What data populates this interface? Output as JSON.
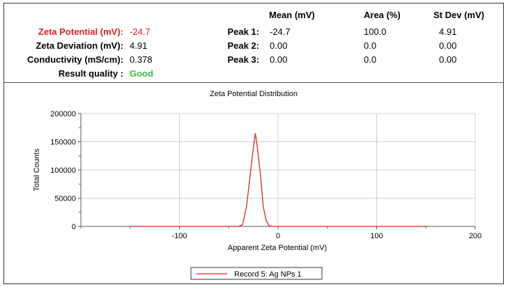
{
  "summary": {
    "headers": {
      "mean": "Mean (mV)",
      "area": "Area (%)",
      "stdev": "St Dev (mV)"
    },
    "left_rows": [
      {
        "label": "Zeta Potential (mV):",
        "value": "-24.7",
        "highlight": "#e02020"
      },
      {
        "label": "Zeta Deviation (mV):",
        "value": "4.91"
      },
      {
        "label": "Conductivity (mS/cm):",
        "value": "0.378"
      },
      {
        "label": "Result quality :",
        "value": "Good",
        "value_color": "#3dbf3d"
      }
    ],
    "peaks": [
      {
        "label": "Peak 1:",
        "mean": "-24.7",
        "area": "100.0",
        "stdev": "4.91"
      },
      {
        "label": "Peak 2:",
        "mean": "0.00",
        "area": "0.0",
        "stdev": "0.00"
      },
      {
        "label": "Peak 3:",
        "mean": "0.00",
        "area": "0.0",
        "stdev": "0.00"
      }
    ]
  },
  "chart_data": {
    "type": "line",
    "title": "Zeta Potential Distribution",
    "xlabel": "Apparent Zeta Potential (mV)",
    "ylabel": "Total Counts",
    "xlim": [
      -200,
      200
    ],
    "ylim": [
      0,
      200000
    ],
    "x_ticks": [
      -100,
      0,
      100,
      200
    ],
    "y_ticks": [
      0,
      50000,
      100000,
      150000,
      200000
    ],
    "grid": true,
    "legend_position": "bottom-center",
    "series": [
      {
        "name": "Record 5: Ag NPs 1",
        "color": "#e02020",
        "x": [
          -150,
          -40,
          -36,
          -32,
          -28,
          -25,
          -23,
          -21,
          -18,
          -15,
          -12,
          -9,
          -6,
          0,
          50,
          150
        ],
        "y": [
          0,
          0,
          3000,
          35000,
          95000,
          140000,
          165000,
          140000,
          95000,
          35000,
          10000,
          1000,
          0,
          0,
          0,
          0
        ]
      }
    ]
  }
}
